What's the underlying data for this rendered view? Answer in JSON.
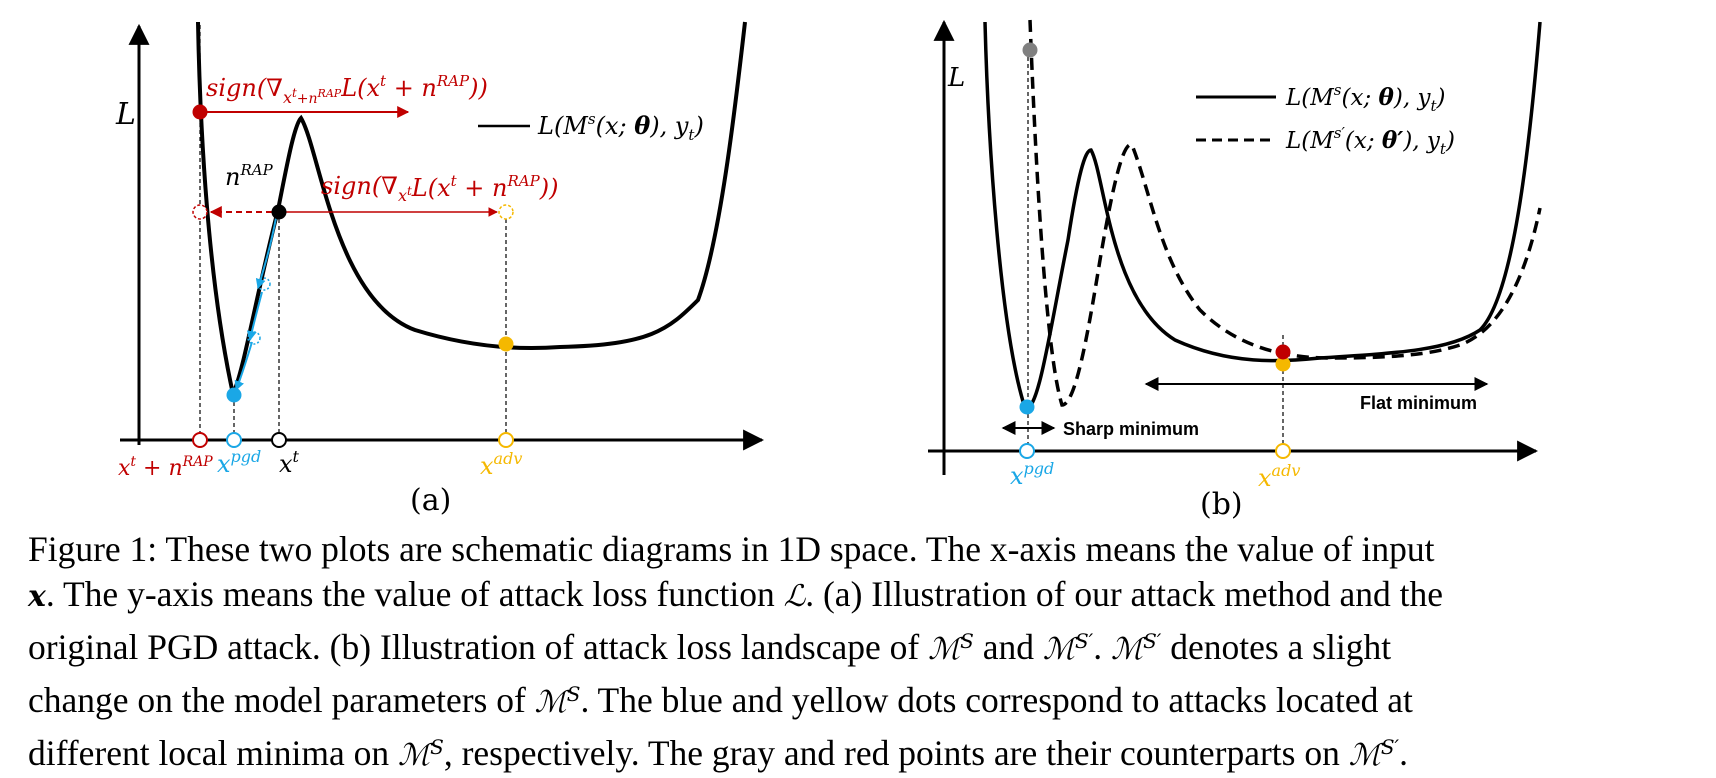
{
  "colors": {
    "red": "#c00000",
    "blue": "#1aa7e6",
    "yellow": "#f5b800",
    "gray": "#808080",
    "black": "#000000"
  },
  "panel_a": {
    "y_axis_label": "L",
    "legend": "L(M^s(x; θ), y_t)",
    "red_arrow_label": "sign(∇_{x^t+n^RAP} L(x^t + n^RAP))",
    "black_arrow_label": "sign(∇_{x^t} L(x^t + n^RAP))",
    "n_rap_label": "n^RAP",
    "x_labels": [
      "x^t + n^RAP",
      "x^pgd",
      "x^t",
      "x^adv"
    ],
    "sublabel": "(a)"
  },
  "panel_b": {
    "y_axis_label": "L",
    "legend_solid": "L(M^s(x; θ), y_t)",
    "legend_dashed": "L(M^s'(x; θ'), y_t)",
    "sharp_label": "Sharp minimum",
    "flat_label": "Flat minimum",
    "x_labels": [
      "x^pgd",
      "x^adv"
    ],
    "sublabel": "(b)"
  },
  "caption": {
    "lines": [
      "Figure 1: These two plots are schematic diagrams in 1D space. The x-axis means the value of input",
      ". The y-axis means the value of attack loss function",
      ". (a) Illustration of our attack method and the",
      "original PGD attack. (b) Illustration of attack loss landscape of",
      "and",
      "denotes a slight",
      "change on the model parameters of",
      ". The blue and yellow dots correspond to attacks located at",
      "different local minima on",
      ", respectively. The gray and red points are their counterparts on"
    ]
  }
}
